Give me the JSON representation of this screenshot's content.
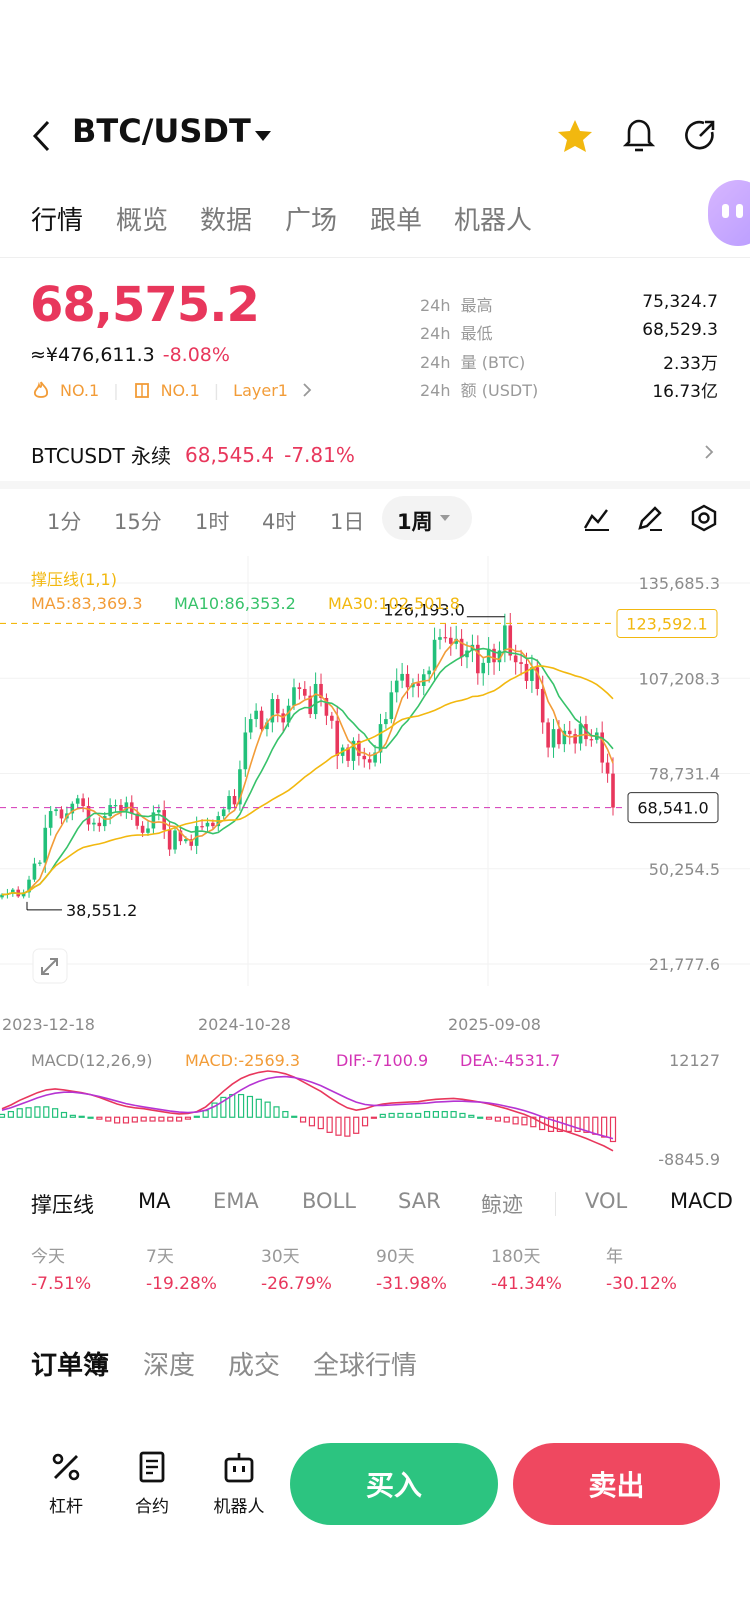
{
  "header": {
    "title": "BTC/USDT"
  },
  "tabs": [
    "行情",
    "概览",
    "数据",
    "广场",
    "跟单",
    "机器人"
  ],
  "price": {
    "last": "68,575.2",
    "cny": "≈¥476,611.3",
    "change": "-8.08%",
    "badges": [
      "NO.1",
      "NO.1",
      "Layer1"
    ]
  },
  "stats": [
    {
      "label1": "24h",
      "label2": "最高",
      "value": "75,324.7"
    },
    {
      "label1": "24h",
      "label2": "最低",
      "value": "68,529.3"
    },
    {
      "label1": "24h",
      "label2": "量 (BTC)",
      "value": "2.33万"
    },
    {
      "label1": "24h",
      "label2": "额 (USDT)",
      "value": "16.73亿"
    }
  ],
  "perpetual": {
    "name": "BTCUSDT 永续",
    "price": "68,545.4",
    "change": "-7.81%"
  },
  "periods": [
    "1分",
    "15分",
    "1时",
    "4时",
    "1日",
    "1周"
  ],
  "chart_data": {
    "type": "candlestick",
    "interval": "1周",
    "indicator_label": "撑压线(1,1)",
    "ma": [
      {
        "name": "MA5",
        "value": "83,369.3",
        "color": "#f29c38"
      },
      {
        "name": "MA10",
        "value": "86,353.2",
        "color": "#37c26a"
      },
      {
        "name": "MA30",
        "value": "102,501.8",
        "color": "#f2b80f"
      }
    ],
    "y_ticks": [
      "135,685.3",
      "107,208.3",
      "78,731.4",
      "50,254.5",
      "21,777.6"
    ],
    "y_range": [
      21777.6,
      135685.3
    ],
    "x_ticks": [
      "2023-12-18",
      "2024-10-28",
      "2025-09-08"
    ],
    "resistance_line": "123,592.1",
    "current_price_tag": "68,541.0",
    "high_marker": "126,193.0",
    "low_marker": "38,551.2",
    "close_series": [
      42500,
      42800,
      44000,
      42000,
      43200,
      47000,
      51800,
      52100,
      62500,
      67500,
      68000,
      65300,
      66800,
      69700,
      71300,
      69000,
      63500,
      64000,
      63000,
      66000,
      69300,
      69300,
      67600,
      70100,
      66700,
      63100,
      61000,
      62300,
      67100,
      67800,
      61900,
      56000,
      61700,
      58500,
      59100,
      57100,
      63000,
      62900,
      64000,
      63000,
      66000,
      68000,
      72000,
      69500,
      80000,
      91000,
      95000,
      97500,
      92000,
      94000,
      101000,
      96700,
      94000,
      99000,
      104500,
      104000,
      102000,
      96500,
      105500,
      101300,
      96000,
      94500,
      84000,
      86500,
      82500,
      88500,
      84000,
      83000,
      82000,
      85000,
      93500,
      95000,
      103000,
      106500,
      108500,
      104500,
      105700,
      104900,
      108400,
      109500,
      118700,
      119500,
      119300,
      117500,
      119000,
      113500,
      115500,
      117200,
      108700,
      111800,
      116000,
      112000,
      115500,
      123000,
      114000,
      112000,
      111500,
      106400,
      110500,
      104000,
      94000,
      86500,
      92000,
      87500,
      91500,
      90500,
      87700,
      93500,
      89000,
      88800,
      91000,
      82000,
      78700,
      68541
    ],
    "macd": {
      "label": "MACD(12,26,9)",
      "macd": "-2569.3",
      "dif": "-7100.9",
      "dea": "-4531.7",
      "y_ticks": [
        "12127",
        "-8845.9"
      ],
      "dif_series": [
        1800,
        2600,
        3600,
        4400,
        5200,
        5800,
        6000,
        5800,
        5500,
        5200,
        4800,
        4200,
        3500,
        2800,
        2300,
        2000,
        1800,
        1500,
        1200,
        900,
        700,
        800,
        1200,
        2200,
        3800,
        5500,
        7000,
        8200,
        9000,
        9500,
        9800,
        9600,
        9200,
        8500,
        7500,
        6500,
        5500,
        4200,
        3000,
        2000,
        1500,
        1800,
        2400,
        2800,
        3000,
        3100,
        3200,
        3300,
        3600,
        3800,
        3900,
        4000,
        3800,
        3500,
        3200,
        2800,
        2300,
        1800,
        1200,
        600,
        -200,
        -1200,
        -2000,
        -2600,
        -3200,
        -3800,
        -4500,
        -5300,
        -6100,
        -7100
      ],
      "dea_series": [
        1500,
        2000,
        2700,
        3400,
        4100,
        4700,
        5100,
        5300,
        5300,
        5100,
        4800,
        4400,
        3900,
        3400,
        2900,
        2500,
        2200,
        1900,
        1600,
        1300,
        1100,
        1000,
        1100,
        1500,
        2300,
        3400,
        4600,
        5800,
        6800,
        7600,
        8200,
        8500,
        8600,
        8400,
        8000,
        7400,
        6700,
        5800,
        4900,
        4000,
        3200,
        2700,
        2500,
        2500,
        2600,
        2700,
        2800,
        2900,
        3000,
        3200,
        3300,
        3400,
        3400,
        3300,
        3200,
        3000,
        2700,
        2300,
        1900,
        1400,
        800,
        100,
        -500,
        -1100,
        -1700,
        -2300,
        -2900,
        -3500,
        -4000,
        -4531
      ]
    }
  },
  "indicators": [
    "撑压线",
    "MA",
    "EMA",
    "BOLL",
    "SAR",
    "鲸迹",
    "VOL",
    "MACD"
  ],
  "changes": [
    {
      "label": "今天",
      "value": "-7.51%"
    },
    {
      "label": "7天",
      "value": "-19.28%"
    },
    {
      "label": "30天",
      "value": "-26.79%"
    },
    {
      "label": "90天",
      "value": "-31.98%"
    },
    {
      "label": "180天",
      "value": "-41.34%"
    },
    {
      "label": "年",
      "value": "-30.12%"
    }
  ],
  "orderbook_tabs": [
    "订单簿",
    "深度",
    "成交",
    "全球行情"
  ],
  "bottom_nav": [
    {
      "label": "杠杆",
      "icon": "leverage-icon"
    },
    {
      "label": "合约",
      "icon": "contract-icon"
    },
    {
      "label": "机器人",
      "icon": "robot-icon"
    }
  ],
  "buy_label": "买入",
  "sell_label": "卖出",
  "colors": {
    "up": "#21c07a",
    "down": "#e8375c",
    "accent": "#f2b80f"
  }
}
